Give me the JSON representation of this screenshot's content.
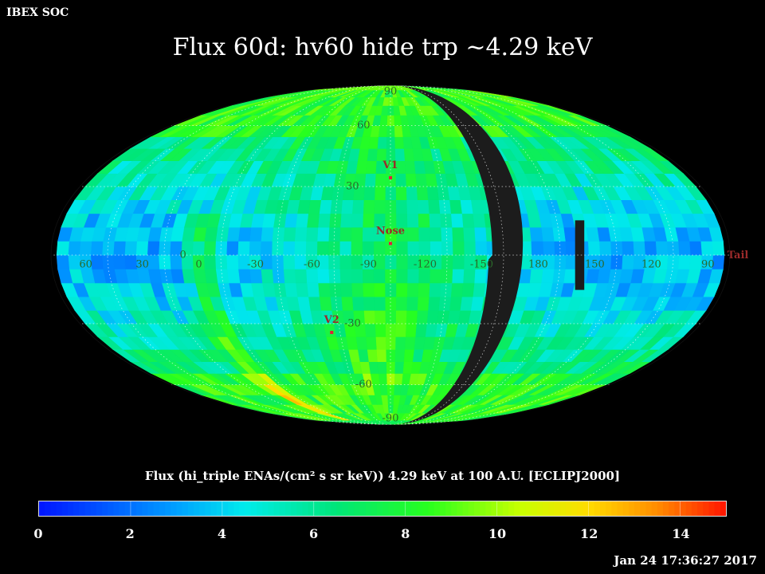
{
  "corner_label": "IBEX SOC",
  "title": "Flux   60d: hv60 hide trp ~4.29 keV",
  "subtitle": "Flux (hi_triple ENAs/(cm² s sr keV))  4.29 keV at 100 A.U. [ECLIPJ2000]",
  "timestamp": "Jan 24 17:36:27 2017",
  "colorbar": {
    "min": 0,
    "max": 15,
    "ticks": [
      "0",
      "2",
      "4",
      "6",
      "8",
      "10",
      "12",
      "14"
    ],
    "tick_values": [
      0,
      2,
      4,
      6,
      8,
      10,
      12,
      14
    ]
  },
  "map": {
    "projection": "Mollweide",
    "center_longitude": -105,
    "longitude_direction": "decreasing-right",
    "graticule_step_deg": 30,
    "lat_labels": [
      "90",
      "60",
      "30",
      "0",
      "-30",
      "-60",
      "-90"
    ],
    "lon_labels": [
      "60",
      "30",
      "0",
      "-30",
      "-60",
      "-90",
      "-120",
      "-150",
      "180",
      "150",
      "120",
      "90"
    ],
    "markers": [
      {
        "label": "V1",
        "lon": -105,
        "lat": 34
      },
      {
        "label": "Nose",
        "lon": -105,
        "lat": 5
      },
      {
        "label": "V2",
        "lon": -70,
        "lat": -34
      },
      {
        "label": "Tail",
        "lon": 75,
        "lat": 0
      }
    ],
    "label_color": "#9b2a2a",
    "grid_label_color": "#2a6a2a",
    "hidden_region_color": "#1c1c1c"
  }
}
